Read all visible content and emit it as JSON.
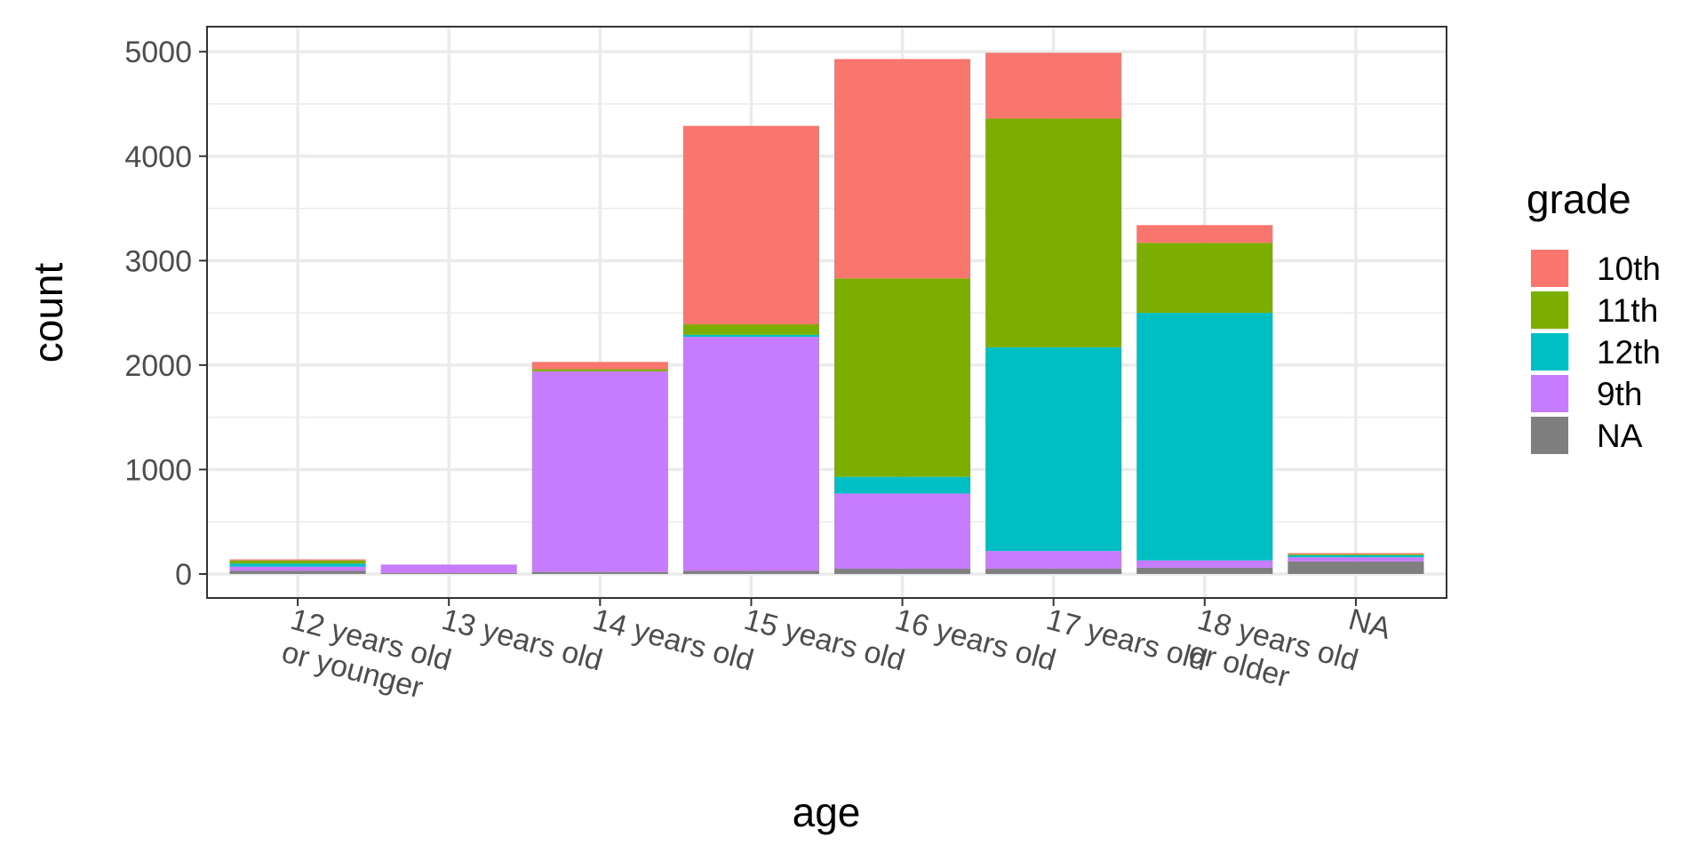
{
  "chart_data": {
    "type": "bar",
    "stacked": true,
    "xlabel": "age",
    "ylabel": "count",
    "ylim": [
      -230,
      5240
    ],
    "yticks": [
      0,
      1000,
      2000,
      3000,
      4000,
      5000
    ],
    "grid": true,
    "legend_position": "right",
    "legend_title": "grade",
    "categories": [
      "12 years old or younger",
      "13 years old",
      "14 years old",
      "15 years old",
      "16 years old",
      "17 years old",
      "18 years old or older",
      "NA"
    ],
    "series": [
      {
        "name": "10th",
        "color": "#F8766D",
        "values": [
          10,
          0,
          70,
          1900,
          2100,
          630,
          170,
          10
        ]
      },
      {
        "name": "11th",
        "color": "#7CAE00",
        "values": [
          30,
          0,
          20,
          100,
          1900,
          2190,
          670,
          10
        ]
      },
      {
        "name": "12th",
        "color": "#00BFC4",
        "values": [
          30,
          0,
          0,
          20,
          160,
          1950,
          2370,
          20
        ]
      },
      {
        "name": "9th",
        "color": "#C77CFF",
        "values": [
          40,
          80,
          1920,
          2240,
          720,
          170,
          70,
          40
        ]
      },
      {
        "name": "NA",
        "color": "#7F7F7F",
        "values": [
          30,
          10,
          20,
          30,
          50,
          50,
          60,
          120
        ]
      }
    ]
  }
}
